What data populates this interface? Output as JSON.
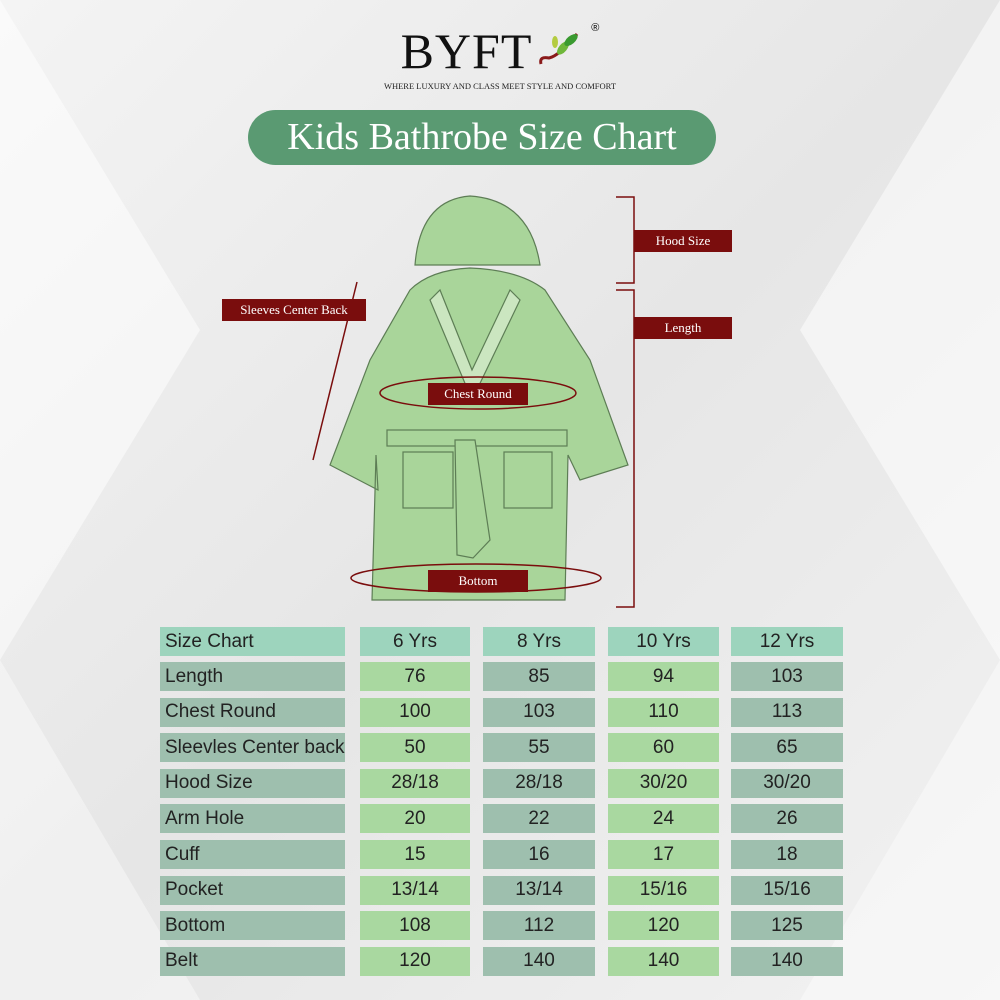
{
  "brand": {
    "name": "BYFT",
    "registered": "®",
    "tagline": "WHERE LUXURY AND CLASS MEET STYLE AND COMFORT"
  },
  "title": "Kids Bathrobe Size Chart",
  "labels": {
    "hood": "Hood Size",
    "length": "Length",
    "sleeves": "Sleeves Center Back",
    "chest": "Chest Round",
    "bottom": "Bottom"
  },
  "colors": {
    "title_bg": "#5a9a72",
    "label_bg": "#7a0d0d",
    "robe": "#a9d59a",
    "header_cell": "#9dd4bd",
    "grey_cell": "#9ebfae",
    "green_cell": "#a9d8a0"
  },
  "table": {
    "headers": [
      "Size Chart",
      "6 Yrs",
      "8 Yrs",
      "10 Yrs",
      "12 Yrs"
    ],
    "rows": [
      [
        "Length",
        "76",
        "85",
        "94",
        "103"
      ],
      [
        "Chest Round",
        "100",
        "103",
        "110",
        "113"
      ],
      [
        "Sleevles Center back",
        "50",
        "55",
        "60",
        "65"
      ],
      [
        "Hood Size",
        "28/18",
        "28/18",
        "30/20",
        "30/20"
      ],
      [
        "Arm Hole",
        "20",
        "22",
        "24",
        "26"
      ],
      [
        "Cuff",
        "15",
        "16",
        "17",
        "18"
      ],
      [
        "Pocket",
        "13/14",
        "13/14",
        "15/16",
        "15/16"
      ],
      [
        "Bottom",
        "108",
        "112",
        "120",
        "125"
      ],
      [
        "Belt",
        "120",
        "140",
        "140",
        "140"
      ]
    ]
  }
}
